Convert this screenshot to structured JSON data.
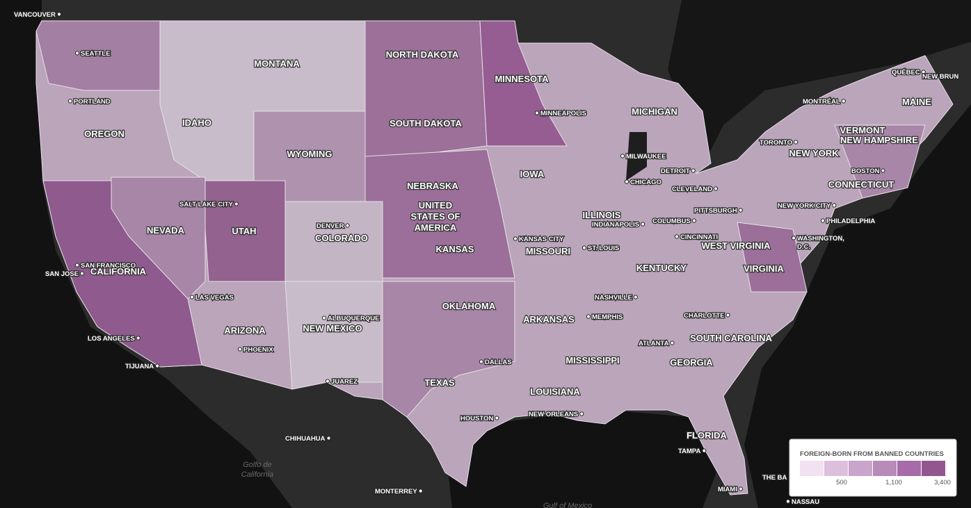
{
  "labels": {
    "states": [
      "MONTANA",
      "NORTH DAKOTA",
      "MINNESOTA",
      "MICHIGAN",
      "MAINE",
      "OREGON",
      "IDAHO",
      "SOUTH DAKOTA",
      "WYOMING",
      "VERMONT",
      "NEW HAMPSHIRE",
      "NEW YORK",
      "IOWA",
      "NEBRASKA",
      "CONNECTICUT",
      "NEVADA",
      "UTAH",
      "COLORADO",
      "KANSAS",
      "ILLINOIS",
      "MISSOURI",
      "WEST VIRGINIA",
      "KENTUCKY",
      "VIRGINIA",
      "CALIFORNIA",
      "OKLAHOMA",
      "ARKANSAS",
      "ARIZONA",
      "NEW MEXICO",
      "SOUTH CAROLINA",
      "MISSISSIPPI",
      "GEORGIA",
      "TEXAS",
      "LOUISIANA",
      "FLORIDA"
    ],
    "country": [
      "UNITED",
      "STATES OF",
      "AMERICA"
    ],
    "cities": [
      "VANCOUVER",
      "SEATTLE",
      "PORTLAND",
      "QUÉBEC",
      "NEW BRUN",
      "MONTRÉAL",
      "TORONTO",
      "MINNEAPOLIS",
      "MILWAUKEE",
      "DETROIT",
      "CHICAGO",
      "CLEVELAND",
      "BOSTON",
      "NEW YORK CITY",
      "PITTSBURGH",
      "PHILADELPHIA",
      "SALT LAKE CITY",
      "DENVER",
      "INDIANAPOLIS",
      "COLUMBUS",
      "KANSAS CITY",
      "CINCINNATI",
      "WASHINGTON,",
      "D.C.",
      "ST. LOUIS",
      "SAN FRANCISCO",
      "SAN JOSE",
      "LAS VEGAS",
      "NASHVILLE",
      "ALBUQUERQUE",
      "MEMPHIS",
      "CHARLOTTE",
      "LOS ANGELES",
      "ATLANTA",
      "PHOENIX",
      "DALLAS",
      "TIJUANA",
      "JUAREZ",
      "HOUSTON",
      "NEW ORLEANS",
      "TAMPA",
      "CHIHUAHUA",
      "MONTERREY",
      "MIAMI",
      "NASSAU",
      "THE BA"
    ],
    "water": [
      "Golfo de",
      "California",
      "Gulf of Mexico"
    ]
  },
  "legend": {
    "title": "FOREIGN-BORN FROM BANNED COUNTRIES",
    "colors": [
      "#f1e1f1",
      "#dcbfdc",
      "#c9a4cb",
      "#b88bb9",
      "#a66ba8",
      "#93568f"
    ],
    "labels": [
      "500",
      "1,100",
      "3,400"
    ]
  }
}
